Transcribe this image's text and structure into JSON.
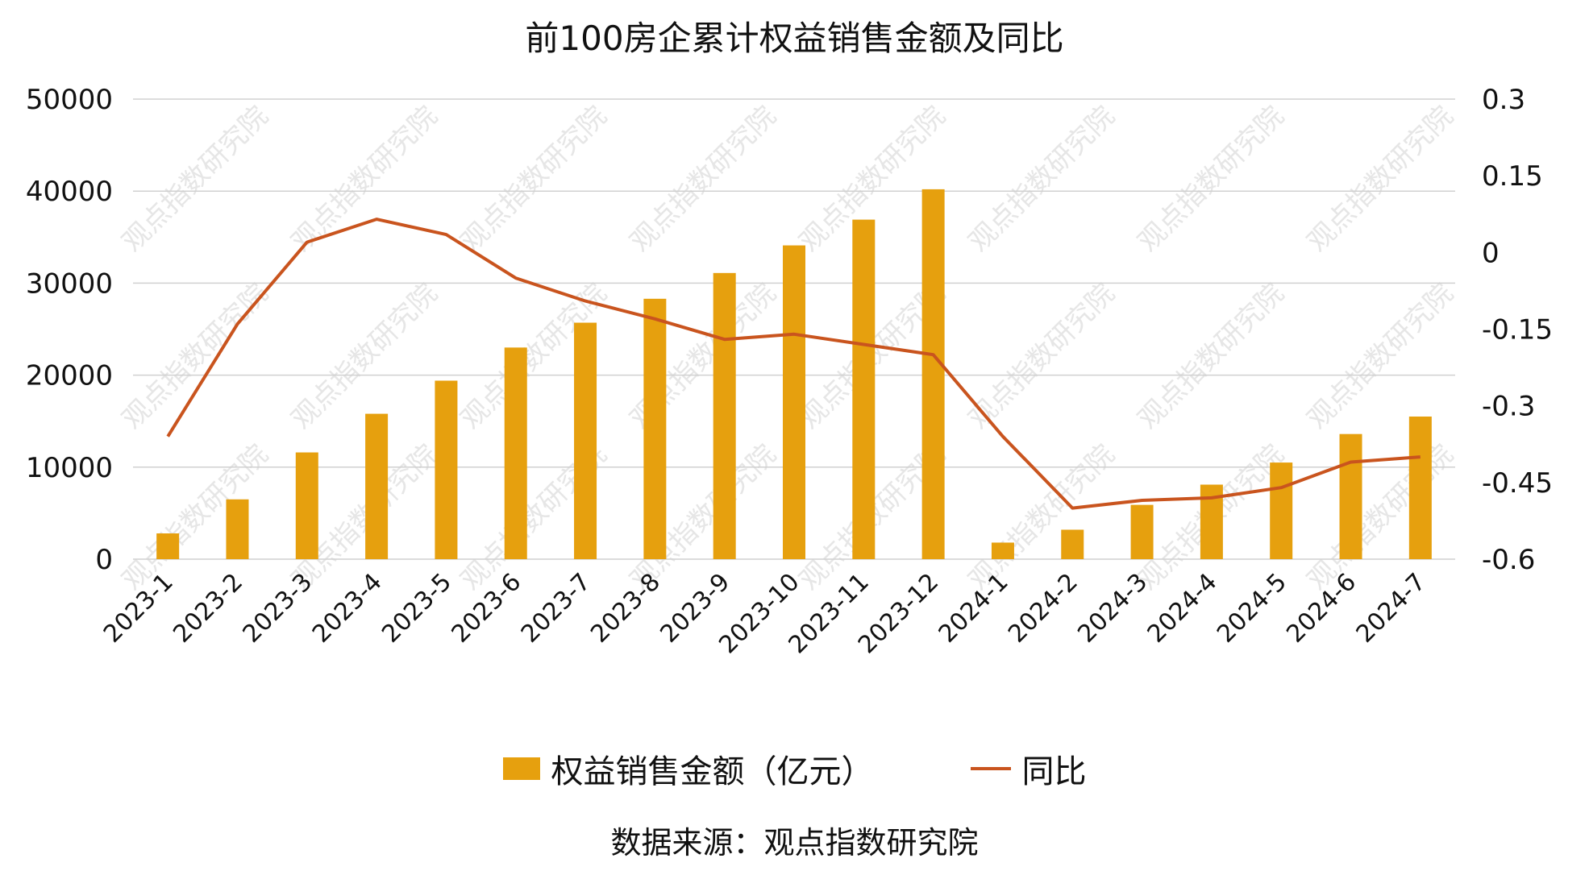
{
  "colors": {
    "bar": "#e6a00e",
    "line": "#c9541e",
    "grid": "#d0d0d0",
    "watermark": "#e6e6e6"
  },
  "legend": {
    "bar_label": "权益销售金额（亿元）",
    "line_label": "同比"
  },
  "source": "数据来源：观点指数研究院",
  "watermark": "观点指数研究院",
  "chart_data": {
    "type": "bar",
    "title": "前100房企累计权益销售金额及同比",
    "categories": [
      "2023-1",
      "2023-2",
      "2023-3",
      "2023-4",
      "2023-5",
      "2023-6",
      "2023-7",
      "2023-8",
      "2023-9",
      "2023-10",
      "2023-11",
      "2023-12",
      "2024-1",
      "2024-2",
      "2024-3",
      "2024-4",
      "2024-5",
      "2024-6",
      "2024-7"
    ],
    "series": [
      {
        "name": "权益销售金额（亿元）",
        "type": "bar",
        "axis": "left",
        "values": [
          2800,
          6500,
          11600,
          15800,
          19400,
          23000,
          25700,
          28300,
          31100,
          34100,
          36900,
          40200,
          1800,
          3200,
          5900,
          8100,
          10500,
          13600,
          15500
        ]
      },
      {
        "name": "同比",
        "type": "line",
        "axis": "right",
        "values": [
          -0.36,
          -0.14,
          0.02,
          0.065,
          0.035,
          -0.05,
          -0.095,
          -0.13,
          -0.17,
          -0.16,
          -0.18,
          -0.2,
          -0.36,
          -0.5,
          -0.485,
          -0.48,
          -0.46,
          -0.41,
          -0.4
        ]
      }
    ],
    "y_left": {
      "ticks": [
        "50000",
        "40000",
        "30000",
        "20000",
        "10000",
        "0"
      ],
      "ylim": [
        0,
        50000
      ]
    },
    "y_right": {
      "ticks": [
        "0.3",
        "0.15",
        "0",
        "-0.15",
        "-0.3",
        "-0.45",
        "-0.6"
      ],
      "ylim": [
        -0.6,
        0.3
      ]
    },
    "grid": true,
    "legend_position": "bottom"
  }
}
